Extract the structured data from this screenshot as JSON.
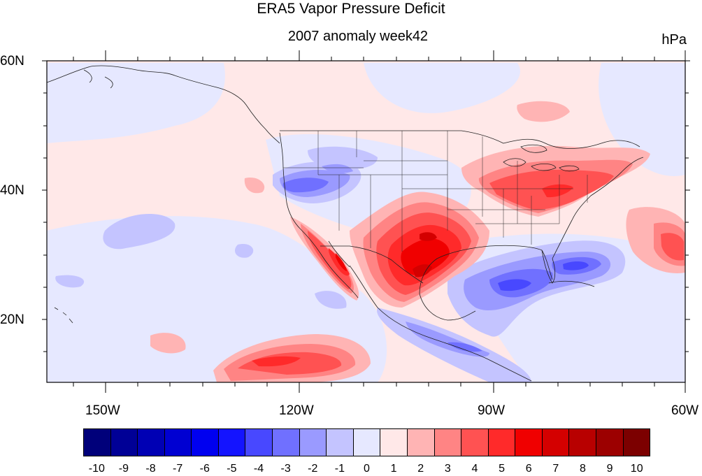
{
  "title": "ERA5 Vapor Pressure Deficit",
  "subtitle": "2007 anomaly week42",
  "units": "hPa",
  "lat_labels": [
    "60N",
    "40N",
    "20N"
  ],
  "lon_labels": [
    "150W",
    "120W",
    "90W",
    "60W"
  ],
  "colorbar": {
    "labels": [
      "-10",
      "-9",
      "-8",
      "-7",
      "-6",
      "-5",
      "-4",
      "-3",
      "-2",
      "-1",
      "0",
      "1",
      "2",
      "3",
      "4",
      "5",
      "6",
      "7",
      "8",
      "9",
      "10"
    ],
    "colors": [
      "#00007a",
      "#000096",
      "#0000b4",
      "#0000d2",
      "#0000f0",
      "#1414ff",
      "#4848ff",
      "#7070ff",
      "#9a9aff",
      "#c4c4ff",
      "#e6e8ff",
      "#ffe8e8",
      "#ffb4b4",
      "#ff8484",
      "#ff5252",
      "#ff2a2a",
      "#f00000",
      "#d40000",
      "#b80000",
      "#9c0000",
      "#7c0000"
    ]
  },
  "map": {
    "projection": "cylindrical-equidistant",
    "lon_range": [
      -160,
      -60
    ],
    "lat_range": [
      10,
      60
    ],
    "background_color": "#ffe8e8",
    "has_country_and_state_borders": true
  }
}
